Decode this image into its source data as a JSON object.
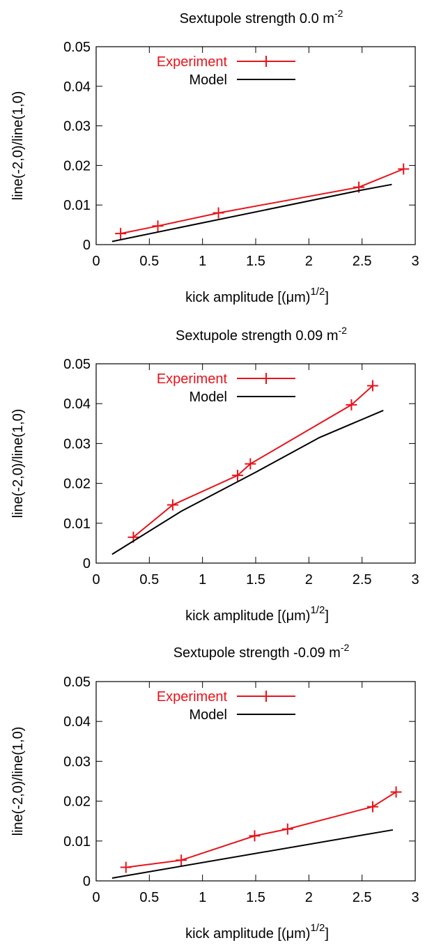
{
  "chart_data": [
    {
      "type": "line",
      "title": "Sextupole strength 0.0 m",
      "title_superscript": "-2",
      "xlabel": "kick amplitude [(μm)",
      "xlabel_superscript": "1/2",
      "xlabel_suffix": "]",
      "ylabel": "line(-2,0)/line(1,0)",
      "xlim": [
        0,
        3
      ],
      "ylim": [
        0,
        0.05
      ],
      "xticks": [
        "0",
        "0.5",
        "1",
        "1.5",
        "2",
        "2.5",
        "3"
      ],
      "yticks": [
        "0",
        "0.01",
        "0.02",
        "0.03",
        "0.04",
        "0.05"
      ],
      "grid": false,
      "legend_position": "top-right",
      "series": [
        {
          "name": "Experiment",
          "color": "#e8131a",
          "marker": "plus",
          "x": [
            0.23,
            0.58,
            1.15,
            2.47,
            2.89
          ],
          "y": [
            0.0028,
            0.0047,
            0.008,
            0.0145,
            0.0191
          ]
        },
        {
          "name": "Model",
          "color": "#000000",
          "marker": "none",
          "x": [
            0.15,
            2.5,
            2.78
          ],
          "y": [
            0.0008,
            0.0138,
            0.0152
          ]
        }
      ]
    },
    {
      "type": "line",
      "title": "Sextupole strength 0.09 m",
      "title_superscript": "-2",
      "xlabel": "kick amplitude [(μm)",
      "xlabel_superscript": "1/2",
      "xlabel_suffix": "]",
      "ylabel": "line(-2,0)/line(1,0)",
      "xlim": [
        0,
        3
      ],
      "ylim": [
        0,
        0.05
      ],
      "xticks": [
        "0",
        "0.5",
        "1",
        "1.5",
        "2",
        "2.5",
        "3"
      ],
      "yticks": [
        "0",
        "0.01",
        "0.02",
        "0.03",
        "0.04",
        "0.05"
      ],
      "grid": false,
      "legend_position": "top-right",
      "series": [
        {
          "name": "Experiment",
          "color": "#e8131a",
          "marker": "plus",
          "x": [
            0.35,
            0.72,
            1.33,
            1.45,
            2.4,
            2.6
          ],
          "y": [
            0.0065,
            0.0146,
            0.022,
            0.0249,
            0.0397,
            0.0445
          ]
        },
        {
          "name": "Model",
          "color": "#000000",
          "marker": "none",
          "x": [
            0.15,
            0.8,
            1.5,
            2.1,
            2.7
          ],
          "y": [
            0.0022,
            0.013,
            0.0228,
            0.0315,
            0.0383
          ]
        }
      ]
    },
    {
      "type": "line",
      "title": "Sextupole strength -0.09 m",
      "title_superscript": "-2",
      "xlabel": "kick amplitude [(μm)",
      "xlabel_superscript": "1/2",
      "xlabel_suffix": "]",
      "ylabel": "line(-2,0)/line(1,0)",
      "xlim": [
        0,
        3
      ],
      "ylim": [
        0,
        0.05
      ],
      "xticks": [
        "0",
        "0.5",
        "1",
        "1.5",
        "2",
        "2.5",
        "3"
      ],
      "yticks": [
        "0",
        "0.01",
        "0.02",
        "0.03",
        "0.04",
        "0.05"
      ],
      "grid": false,
      "legend_position": "top-right",
      "series": [
        {
          "name": "Experiment",
          "color": "#e8131a",
          "marker": "plus",
          "x": [
            0.28,
            0.8,
            1.49,
            1.8,
            2.6,
            2.82
          ],
          "y": [
            0.0034,
            0.0052,
            0.0113,
            0.013,
            0.0186,
            0.0223
          ]
        },
        {
          "name": "Model",
          "color": "#000000",
          "marker": "none",
          "x": [
            0.15,
            2.79
          ],
          "y": [
            0.0007,
            0.0128
          ]
        }
      ]
    }
  ]
}
